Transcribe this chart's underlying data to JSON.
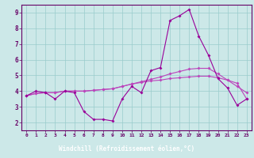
{
  "xlabel": "Windchill (Refroidissement éolien,°C)",
  "x_values": [
    0,
    1,
    2,
    3,
    4,
    5,
    6,
    7,
    8,
    9,
    10,
    11,
    12,
    13,
    14,
    15,
    16,
    17,
    18,
    19,
    20,
    21,
    22,
    23
  ],
  "line1": [
    3.7,
    4.0,
    3.9,
    3.5,
    4.0,
    3.9,
    2.7,
    2.2,
    2.2,
    2.1,
    3.5,
    4.3,
    3.9,
    5.3,
    5.5,
    8.5,
    8.8,
    9.2,
    7.5,
    6.3,
    4.8,
    4.2,
    3.1,
    3.5
  ],
  "line2": [
    3.7,
    3.85,
    3.9,
    3.9,
    4.0,
    4.0,
    4.0,
    4.05,
    4.1,
    4.15,
    4.3,
    4.45,
    4.6,
    4.75,
    4.9,
    5.1,
    5.25,
    5.4,
    5.45,
    5.45,
    5.1,
    4.7,
    4.3,
    3.9
  ],
  "line3": [
    3.7,
    3.85,
    3.9,
    3.9,
    4.0,
    4.0,
    4.0,
    4.05,
    4.1,
    4.15,
    4.3,
    4.45,
    4.55,
    4.65,
    4.7,
    4.8,
    4.85,
    4.9,
    4.95,
    4.95,
    4.85,
    4.7,
    4.5,
    3.5
  ],
  "line_color1": "#990099",
  "line_color2": "#bb44bb",
  "line_color3": "#bb44bb",
  "bg_color": "#cce8e8",
  "grid_color": "#99cccc",
  "axis_color": "#660066",
  "xlabel_bg": "#660066",
  "xlabel_fg": "#ffffff",
  "ylim": [
    1.5,
    9.5
  ],
  "xlim": [
    -0.5,
    23.5
  ],
  "yticks": [
    2,
    3,
    4,
    5,
    6,
    7,
    8,
    9
  ],
  "xticks": [
    0,
    1,
    2,
    3,
    4,
    5,
    6,
    7,
    8,
    9,
    10,
    11,
    12,
    13,
    14,
    15,
    16,
    17,
    18,
    19,
    20,
    21,
    22,
    23
  ],
  "marker": "D",
  "markersize": 2.0,
  "linewidth": 0.8
}
